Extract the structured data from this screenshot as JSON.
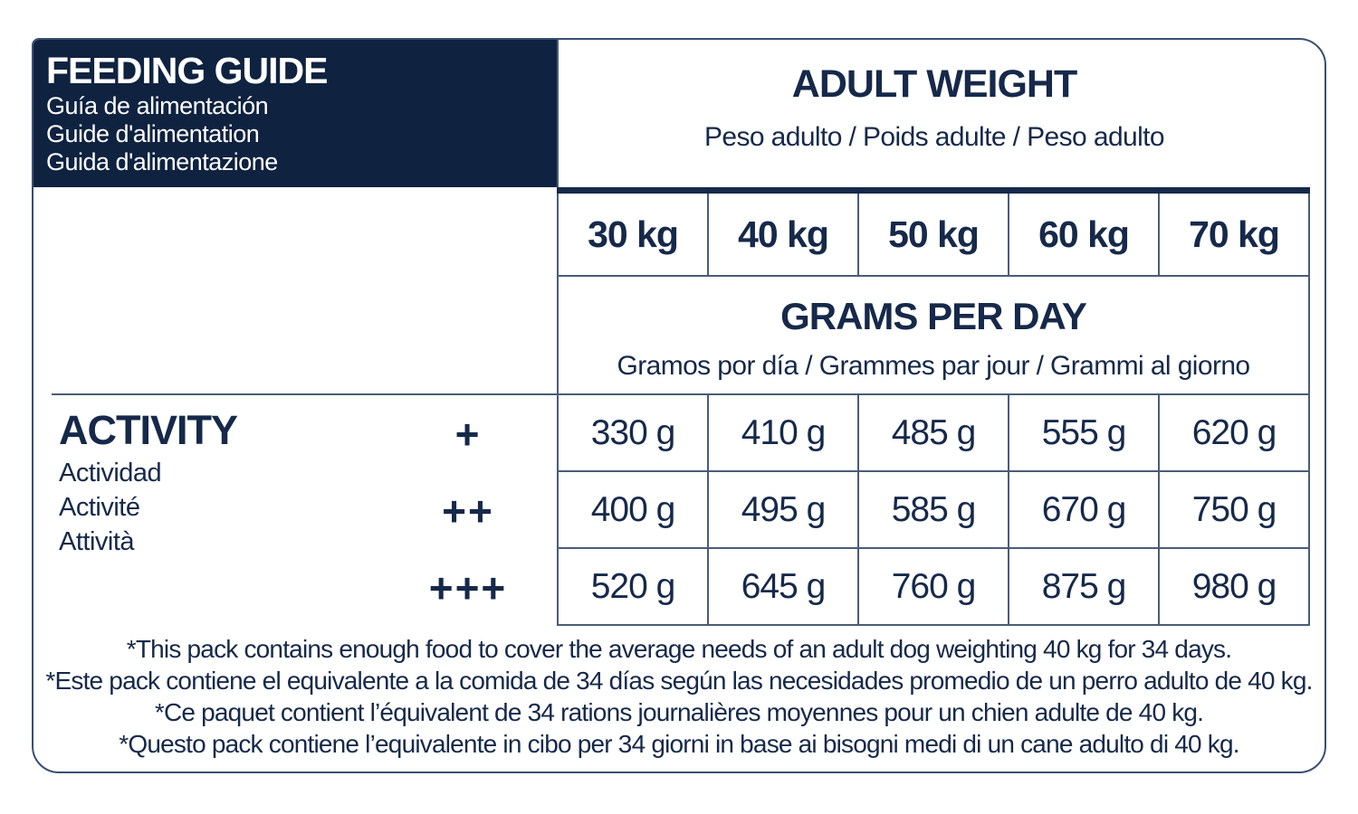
{
  "colors": {
    "navy_box": "#0f2240",
    "text_navy": "#16294a",
    "grid_line": "#4a5c78",
    "card_border": "#3a4f70",
    "background": "#ffffff"
  },
  "header": {
    "title": "FEEDING GUIDE",
    "subtitles": [
      "Guía de alimentación",
      "Guide d'alimentation",
      "Guida d'alimentazione"
    ]
  },
  "adult_weight": {
    "title": "ADULT WEIGHT",
    "subtitle": "Peso adulto / Poids adulte / Peso adulto"
  },
  "weights": [
    "30 kg",
    "40 kg",
    "50 kg",
    "60 kg",
    "70 kg"
  ],
  "grams_per_day": {
    "title": "GRAMS PER DAY",
    "subtitle": "Gramos por día / Grammes par jour / Grammi al giorno"
  },
  "activity": {
    "title": "ACTIVITY",
    "subtitles": [
      "Actividad",
      "Activité",
      "Attività"
    ]
  },
  "rows": [
    {
      "level": "+",
      "values": [
        "330 g",
        "410 g",
        "485 g",
        "555 g",
        "620 g"
      ]
    },
    {
      "level": "++",
      "values": [
        "400 g",
        "495 g",
        "585 g",
        "670 g",
        "750 g"
      ]
    },
    {
      "level": "+++",
      "values": [
        "520 g",
        "645 g",
        "760 g",
        "875 g",
        "980 g"
      ]
    }
  ],
  "footnotes": [
    "*This pack contains enough food to cover the average needs of an adult dog weighting 40 kg for 34 days.",
    "*Este pack contiene el equivalente a la comida de 34 días según las necesidades promedio de un perro adulto de 40 kg.",
    "*Ce paquet contient l’équivalent de 34 rations journalières moyennes pour un chien adulte de 40 kg.",
    "*Questo pack contiene l’equivalente in cibo per 34 giorni in base ai bisogni medi di un cane adulto di 40 kg."
  ]
}
